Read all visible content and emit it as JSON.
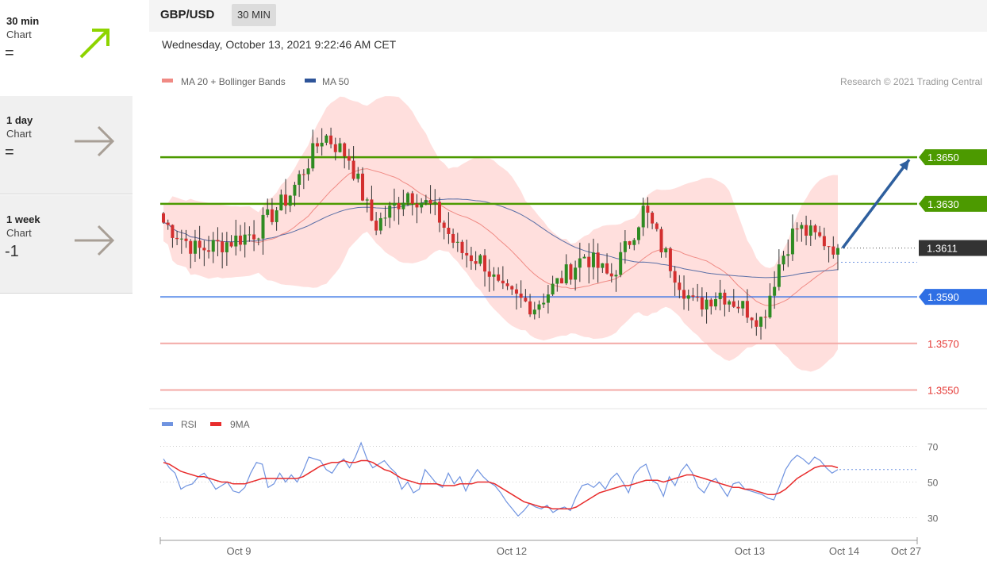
{
  "sidebar": {
    "items": [
      {
        "title": "30 min",
        "sub": "Chart",
        "value": "=",
        "arrow": "up-right-arrow",
        "color": "#8ed400"
      },
      {
        "title": "1 day",
        "sub": "Chart",
        "value": "=",
        "arrow": "right-arrow",
        "color": "#a89f96"
      },
      {
        "title": "1 week",
        "sub": "Chart",
        "value": "-1",
        "arrow": "right-arrow",
        "color": "#a89f96"
      }
    ]
  },
  "header": {
    "pair": "GBP/USD",
    "timeframe": "30 MIN",
    "datetime": "Wednesday, October 13, 2021 9:22:46 AM CET"
  },
  "legend": {
    "ma20": "MA 20 + Bollinger Bands",
    "ma50": "MA 50",
    "copyright": "Research © 2021 Trading Central",
    "rsi": "RSI",
    "ma9": "9MA"
  },
  "chart_data": [
    {
      "type": "candlestick",
      "symbol": "GBP/USD",
      "interval": "30 MIN",
      "ylim": [
        1.3543,
        1.3692
      ],
      "x_ticks": [
        "Oct 9",
        "Oct 12",
        "Oct 13",
        "Oct 14",
        "Oct 27"
      ],
      "levels": [
        {
          "label": "1.3650",
          "value": 1.365,
          "color": "#4c9a00",
          "kind": "resistance"
        },
        {
          "label": "1.3630",
          "value": 1.363,
          "color": "#4c9a00",
          "kind": "resistance"
        },
        {
          "label": "1.3611",
          "value": 1.3611,
          "color": "#333333",
          "kind": "current"
        },
        {
          "label": "1.3590",
          "value": 1.359,
          "color": "#2f6fe4",
          "kind": "pivot"
        },
        {
          "label": "1.3570",
          "value": 1.357,
          "color": "#e53935",
          "kind": "support"
        },
        {
          "label": "1.3550",
          "value": 1.355,
          "color": "#e53935",
          "kind": "support"
        }
      ],
      "forecast": {
        "from": 1.3611,
        "to": 1.365,
        "color": "#2e5f9e"
      },
      "pivot_close": 1.3611,
      "candles_start": [
        1.3635,
        1.3628,
        1.3612,
        1.3619,
        1.3624
      ],
      "candle_count": 150,
      "bull_color": "#2e8b22",
      "bear_color": "#d32f2f",
      "band_color": "#ffd7d4",
      "ma20_color": "#f08a84",
      "ma50_color": "#5b6fa6"
    },
    {
      "type": "line",
      "name": "RSI",
      "ylim": [
        20,
        80
      ],
      "y_ticks": [
        70,
        50,
        30
      ],
      "series": [
        {
          "name": "RSI",
          "color": "#6f93e0",
          "values": [
            63,
            58,
            55,
            46,
            48,
            49,
            53,
            55,
            51,
            46,
            48,
            50,
            45,
            44,
            47,
            55,
            61,
            60,
            47,
            49,
            55,
            50,
            54,
            50,
            56,
            64,
            63,
            62,
            57,
            55,
            60,
            63,
            58,
            64,
            72,
            63,
            58,
            60,
            62,
            58,
            55,
            46,
            50,
            44,
            46,
            57,
            53,
            49,
            47,
            55,
            49,
            53,
            45,
            52,
            57,
            53,
            50,
            48,
            44,
            39,
            35,
            31,
            34,
            38,
            36,
            35,
            37,
            33,
            35,
            36,
            34,
            42,
            48,
            49,
            47,
            50,
            46,
            52,
            55,
            50,
            44,
            54,
            58,
            60,
            51,
            49,
            42,
            53,
            48,
            56,
            60,
            55,
            47,
            44,
            50,
            52,
            47,
            42,
            49,
            50,
            46,
            45,
            44,
            43,
            41,
            40,
            48,
            57,
            62,
            65,
            63,
            60,
            64,
            62,
            58,
            55,
            57
          ]
        },
        {
          "name": "9MA",
          "color": "#e82c2c",
          "values": [
            61,
            60,
            58,
            56,
            55,
            54,
            53,
            53,
            52,
            51,
            50,
            50,
            49,
            49,
            49,
            50,
            51,
            52,
            52,
            52,
            52,
            52,
            52,
            52,
            53,
            55,
            57,
            59,
            60,
            61,
            61,
            62,
            61,
            61,
            62,
            62,
            61,
            59,
            57,
            56,
            54,
            52,
            51,
            50,
            49,
            49,
            49,
            49,
            48,
            48,
            48,
            49,
            49,
            49,
            50,
            50,
            50,
            49,
            47,
            45,
            43,
            41,
            39,
            38,
            37,
            36,
            36,
            35,
            35,
            35,
            35,
            36,
            38,
            40,
            42,
            44,
            45,
            46,
            47,
            48,
            48,
            49,
            50,
            51,
            51,
            51,
            50,
            51,
            52,
            53,
            54,
            54,
            53,
            52,
            51,
            50,
            49,
            48,
            47,
            47,
            46,
            46,
            45,
            44,
            43,
            43,
            44,
            46,
            49,
            52,
            54,
            56,
            58,
            59,
            59,
            59,
            58
          ]
        }
      ],
      "last_value": 57
    }
  ]
}
